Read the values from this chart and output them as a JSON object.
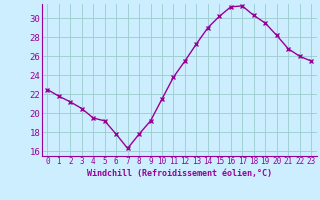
{
  "x": [
    0,
    1,
    2,
    3,
    4,
    5,
    6,
    7,
    8,
    9,
    10,
    11,
    12,
    13,
    14,
    15,
    16,
    17,
    18,
    19,
    20,
    21,
    22,
    23
  ],
  "y": [
    22.5,
    21.8,
    21.2,
    20.5,
    19.5,
    19.2,
    17.8,
    16.3,
    17.8,
    19.2,
    21.5,
    23.8,
    25.5,
    27.3,
    29.0,
    30.2,
    31.2,
    31.3,
    30.3,
    29.5,
    28.2,
    26.8,
    26.0,
    25.5
  ],
  "line_color": "#990099",
  "marker": "x",
  "markersize": 3,
  "markeredgewidth": 1.0,
  "linewidth": 1.0,
  "bg_color": "#cceeff",
  "grid_color": "#99cccc",
  "xlabel": "Windchill (Refroidissement éolien,°C)",
  "xlim": [
    -0.5,
    23.5
  ],
  "ylim": [
    15.5,
    31.5
  ],
  "yticks": [
    16,
    18,
    20,
    22,
    24,
    26,
    28,
    30
  ],
  "xticks": [
    0,
    1,
    2,
    3,
    4,
    5,
    6,
    7,
    8,
    9,
    10,
    11,
    12,
    13,
    14,
    15,
    16,
    17,
    18,
    19,
    20,
    21,
    22,
    23
  ],
  "tick_color": "#990099",
  "label_color": "#990099",
  "spine_color": "#990099",
  "xlabel_fontsize": 6.0,
  "ytick_fontsize": 6.5,
  "xtick_fontsize": 5.5
}
